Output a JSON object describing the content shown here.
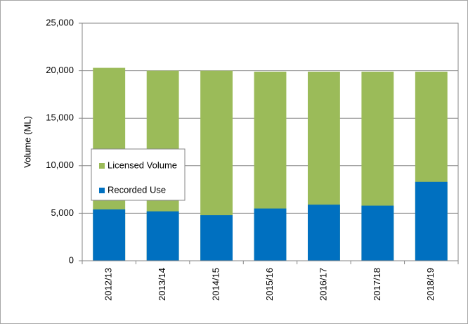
{
  "chart_data": {
    "type": "bar",
    "y_label": "Volume (ML)",
    "categories": [
      "2012/13",
      "2013/14",
      "2014/15",
      "2015/16",
      "2016/17",
      "2017/18",
      "2018/19"
    ],
    "series": [
      {
        "name": "Licensed Volume",
        "color": "#9bbb59",
        "values": [
          20300,
          20000,
          20000,
          19900,
          19900,
          19900,
          19900
        ]
      },
      {
        "name": "Recorded Use",
        "color": "#0070c0",
        "values": [
          5400,
          5200,
          4800,
          5500,
          5900,
          5800,
          8300
        ]
      }
    ],
    "ylim": [
      0,
      25000
    ],
    "yticks": [
      0,
      {
        "value": 5000,
        "label": "5,000"
      },
      {
        "value": 10000,
        "label": "10,000"
      },
      {
        "value": 15000,
        "label": "15,000"
      },
      {
        "value": 20000,
        "label": "20,000"
      },
      {
        "value": 25000,
        "label": "25,000"
      }
    ],
    "grid": true,
    "legend": "left"
  }
}
